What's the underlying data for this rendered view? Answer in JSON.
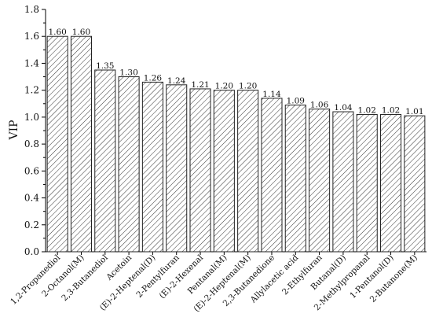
{
  "chart_data": {
    "type": "bar",
    "ylabel": "VIP",
    "xlabel": "",
    "ylim": [
      0,
      1.8
    ],
    "yticks": [
      "0.0",
      "0.2",
      "0.4",
      "0.6",
      "0.8",
      "1.0",
      "1.2",
      "1.4",
      "1.6",
      "1.8"
    ],
    "grid": false,
    "bar_fill": "diagonal-hatch",
    "bar_edge_color": "#222222",
    "categories": [
      "1,2-Propanediol",
      "2-Octanol(M)",
      "2,3-Butanediol",
      "Acetoin",
      "(E)-2-Heptenal(D)",
      "2-Pentylfuran",
      "(E)-2-Hexenal",
      "Pentanal(M)",
      "(E)-2-Heptenal(M)",
      "2,3-Butanedione",
      "Allylacetic acid",
      "2-Ethylfuran",
      "Butanal(D)",
      "2-Methylpropanal",
      "1-Pentanol(D)",
      "2-Butanone(M)"
    ],
    "values": [
      1.6,
      1.6,
      1.35,
      1.3,
      1.26,
      1.24,
      1.21,
      1.2,
      1.2,
      1.14,
      1.09,
      1.06,
      1.04,
      1.02,
      1.02,
      1.01
    ],
    "value_labels": [
      "1.60",
      "1.60",
      "1.35",
      "1.30",
      "1.26",
      "1.24",
      "1.21",
      "1.20",
      "1.20",
      "1.14",
      "1.09",
      "1.06",
      "1.04",
      "1.02",
      "1.02",
      "1.01"
    ]
  }
}
